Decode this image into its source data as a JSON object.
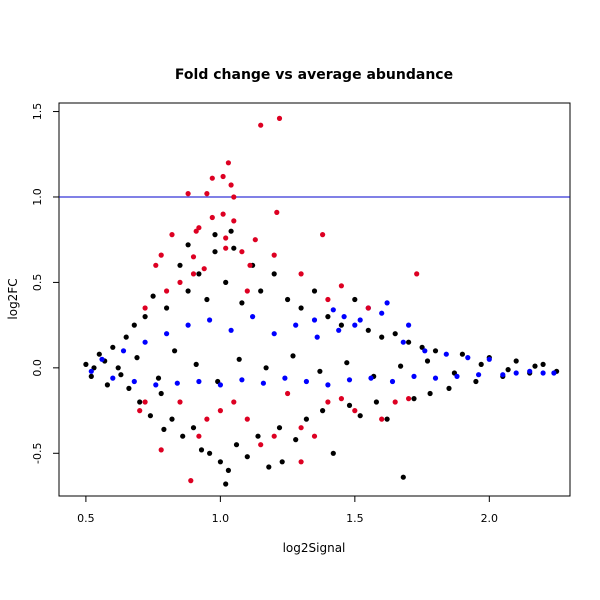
{
  "chart_data": {
    "type": "scatter",
    "title": "Fold change vs average abundance",
    "xlabel": "log2Signal",
    "ylabel": "log2FC",
    "xlim": [
      0.4,
      2.3
    ],
    "ylim": [
      -0.75,
      1.55
    ],
    "xticks": [
      0.5,
      1.0,
      1.5,
      2.0
    ],
    "xtick_labels": [
      "0.5",
      "1.0",
      "1.5",
      "2.0"
    ],
    "yticks": [
      -0.5,
      0.0,
      0.5,
      1.0,
      1.5
    ],
    "ytick_labels": [
      "-0.5",
      "0.0",
      "0.5",
      "1.0",
      "1.5"
    ],
    "grid": false,
    "legend": "none",
    "reference_line": {
      "y": 1.0,
      "color": "#0000cc"
    },
    "colors": {
      "black": "#000000",
      "blue": "#0000ff",
      "red": "#dd0022"
    },
    "series": [
      {
        "color": "black",
        "points": [
          [
            0.5,
            0.02
          ],
          [
            0.52,
            -0.05
          ],
          [
            0.55,
            0.08
          ],
          [
            0.58,
            -0.1
          ],
          [
            0.6,
            0.12
          ],
          [
            0.62,
            0.0
          ],
          [
            0.65,
            0.18
          ],
          [
            0.66,
            -0.12
          ],
          [
            0.68,
            0.25
          ],
          [
            0.7,
            -0.2
          ],
          [
            0.72,
            0.3
          ],
          [
            0.74,
            -0.28
          ],
          [
            0.75,
            0.42
          ],
          [
            0.78,
            -0.15
          ],
          [
            0.8,
            0.35
          ],
          [
            0.82,
            -0.3
          ],
          [
            0.85,
            0.6
          ],
          [
            0.86,
            -0.4
          ],
          [
            0.88,
            0.45
          ],
          [
            0.9,
            -0.35
          ],
          [
            0.92,
            0.55
          ],
          [
            0.93,
            -0.48
          ],
          [
            0.95,
            0.4
          ],
          [
            0.96,
            -0.5
          ],
          [
            0.98,
            0.68
          ],
          [
            1.0,
            -0.55
          ],
          [
            1.02,
            0.5
          ],
          [
            1.03,
            -0.6
          ],
          [
            1.05,
            0.7
          ],
          [
            1.06,
            -0.45
          ],
          [
            1.08,
            0.38
          ],
          [
            1.1,
            -0.52
          ],
          [
            1.12,
            0.6
          ],
          [
            1.14,
            -0.4
          ],
          [
            1.15,
            0.45
          ],
          [
            1.18,
            -0.58
          ],
          [
            1.2,
            0.55
          ],
          [
            1.22,
            -0.35
          ],
          [
            1.25,
            0.4
          ],
          [
            1.28,
            -0.42
          ],
          [
            1.3,
            0.35
          ],
          [
            1.32,
            -0.3
          ],
          [
            1.35,
            0.45
          ],
          [
            1.38,
            -0.25
          ],
          [
            1.4,
            0.3
          ],
          [
            1.42,
            -0.5
          ],
          [
            1.45,
            0.25
          ],
          [
            1.48,
            -0.22
          ],
          [
            1.5,
            0.4
          ],
          [
            1.52,
            -0.28
          ],
          [
            1.55,
            0.22
          ],
          [
            1.58,
            -0.2
          ],
          [
            1.6,
            0.18
          ],
          [
            1.62,
            -0.3
          ],
          [
            1.65,
            0.2
          ],
          [
            1.68,
            -0.64
          ],
          [
            1.7,
            0.15
          ],
          [
            1.72,
            -0.18
          ],
          [
            1.75,
            0.12
          ],
          [
            1.78,
            -0.15
          ],
          [
            1.8,
            0.1
          ],
          [
            1.85,
            -0.12
          ],
          [
            1.9,
            0.08
          ],
          [
            1.95,
            -0.08
          ],
          [
            2.0,
            0.06
          ],
          [
            2.05,
            -0.05
          ],
          [
            2.1,
            0.04
          ],
          [
            2.15,
            -0.03
          ],
          [
            2.2,
            0.02
          ],
          [
            2.25,
            -0.02
          ],
          [
            0.53,
            0.0
          ],
          [
            0.57,
            0.04
          ],
          [
            0.63,
            -0.04
          ],
          [
            0.69,
            0.06
          ],
          [
            0.77,
            -0.06
          ],
          [
            0.83,
            0.1
          ],
          [
            0.91,
            0.02
          ],
          [
            0.99,
            -0.08
          ],
          [
            1.07,
            0.05
          ],
          [
            1.17,
            0.0
          ],
          [
            1.27,
            0.07
          ],
          [
            1.37,
            -0.02
          ],
          [
            1.47,
            0.03
          ],
          [
            1.57,
            -0.05
          ],
          [
            1.67,
            0.01
          ],
          [
            1.77,
            0.04
          ],
          [
            1.87,
            -0.03
          ],
          [
            1.97,
            0.02
          ],
          [
            2.07,
            -0.01
          ],
          [
            2.17,
            0.01
          ],
          [
            1.02,
            -0.68
          ],
          [
            0.79,
            -0.36
          ],
          [
            1.23,
            -0.55
          ],
          [
            0.88,
            0.72
          ],
          [
            1.04,
            0.8
          ],
          [
            0.98,
            0.78
          ]
        ]
      },
      {
        "color": "blue",
        "points": [
          [
            0.52,
            -0.02
          ],
          [
            0.56,
            0.05
          ],
          [
            0.6,
            -0.06
          ],
          [
            0.64,
            0.1
          ],
          [
            0.68,
            -0.08
          ],
          [
            0.72,
            0.15
          ],
          [
            0.76,
            -0.1
          ],
          [
            0.8,
            0.2
          ],
          [
            0.84,
            -0.09
          ],
          [
            0.88,
            0.25
          ],
          [
            0.92,
            -0.08
          ],
          [
            0.96,
            0.28
          ],
          [
            1.0,
            -0.1
          ],
          [
            1.04,
            0.22
          ],
          [
            1.08,
            -0.07
          ],
          [
            1.12,
            0.3
          ],
          [
            1.16,
            -0.09
          ],
          [
            1.2,
            0.2
          ],
          [
            1.24,
            -0.06
          ],
          [
            1.28,
            0.25
          ],
          [
            1.32,
            -0.08
          ],
          [
            1.36,
            0.18
          ],
          [
            1.4,
            -0.1
          ],
          [
            1.44,
            0.22
          ],
          [
            1.48,
            -0.07
          ],
          [
            1.52,
            0.28
          ],
          [
            1.56,
            -0.06
          ],
          [
            1.6,
            0.32
          ],
          [
            1.64,
            -0.08
          ],
          [
            1.68,
            0.15
          ],
          [
            1.72,
            -0.05
          ],
          [
            1.76,
            0.1
          ],
          [
            1.8,
            -0.06
          ],
          [
            1.84,
            0.08
          ],
          [
            1.88,
            -0.05
          ],
          [
            1.92,
            0.06
          ],
          [
            1.96,
            -0.04
          ],
          [
            2.0,
            0.05
          ],
          [
            2.05,
            -0.04
          ],
          [
            2.1,
            -0.03
          ],
          [
            2.15,
            -0.02
          ],
          [
            2.2,
            -0.03
          ],
          [
            2.24,
            -0.03
          ],
          [
            1.42,
            0.34
          ],
          [
            1.46,
            0.3
          ],
          [
            1.55,
            0.35
          ],
          [
            1.62,
            0.38
          ],
          [
            1.7,
            0.25
          ],
          [
            1.5,
            0.25
          ],
          [
            1.35,
            0.28
          ]
        ]
      },
      {
        "color": "red",
        "points": [
          [
            1.15,
            1.42
          ],
          [
            1.22,
            1.46
          ],
          [
            1.03,
            1.2
          ],
          [
            0.97,
            1.11
          ],
          [
            1.01,
            1.12
          ],
          [
            1.04,
            1.07
          ],
          [
            0.88,
            1.02
          ],
          [
            0.95,
            1.02
          ],
          [
            1.05,
            1.0
          ],
          [
            0.92,
            0.82
          ],
          [
            0.97,
            0.88
          ],
          [
            1.01,
            0.9
          ],
          [
            1.05,
            0.86
          ],
          [
            1.21,
            0.91
          ],
          [
            0.91,
            0.8
          ],
          [
            0.82,
            0.78
          ],
          [
            1.02,
            0.76
          ],
          [
            1.13,
            0.75
          ],
          [
            1.38,
            0.78
          ],
          [
            1.02,
            0.7
          ],
          [
            1.08,
            0.68
          ],
          [
            0.9,
            0.65
          ],
          [
            0.78,
            0.66
          ],
          [
            0.76,
            0.6
          ],
          [
            0.94,
            0.58
          ],
          [
            1.11,
            0.6
          ],
          [
            1.2,
            0.66
          ],
          [
            1.3,
            0.55
          ],
          [
            0.85,
            0.5
          ],
          [
            0.9,
            0.55
          ],
          [
            1.1,
            0.45
          ],
          [
            1.4,
            0.4
          ],
          [
            1.45,
            0.48
          ],
          [
            1.73,
            0.55
          ],
          [
            1.55,
            0.35
          ],
          [
            0.72,
            0.35
          ],
          [
            0.8,
            0.45
          ],
          [
            0.7,
            -0.25
          ],
          [
            0.72,
            -0.2
          ],
          [
            0.78,
            -0.48
          ],
          [
            0.89,
            -0.66
          ],
          [
            0.95,
            -0.3
          ],
          [
            1.0,
            -0.25
          ],
          [
            1.1,
            -0.3
          ],
          [
            1.2,
            -0.4
          ],
          [
            1.3,
            -0.35
          ],
          [
            1.4,
            -0.2
          ],
          [
            1.5,
            -0.25
          ],
          [
            1.6,
            -0.3
          ],
          [
            0.85,
            -0.2
          ],
          [
            1.05,
            -0.2
          ],
          [
            1.25,
            -0.15
          ],
          [
            1.45,
            -0.18
          ],
          [
            1.35,
            -0.4
          ],
          [
            1.15,
            -0.45
          ],
          [
            0.92,
            -0.4
          ],
          [
            1.3,
            -0.55
          ],
          [
            1.65,
            -0.2
          ],
          [
            1.7,
            -0.18
          ]
        ]
      }
    ]
  }
}
